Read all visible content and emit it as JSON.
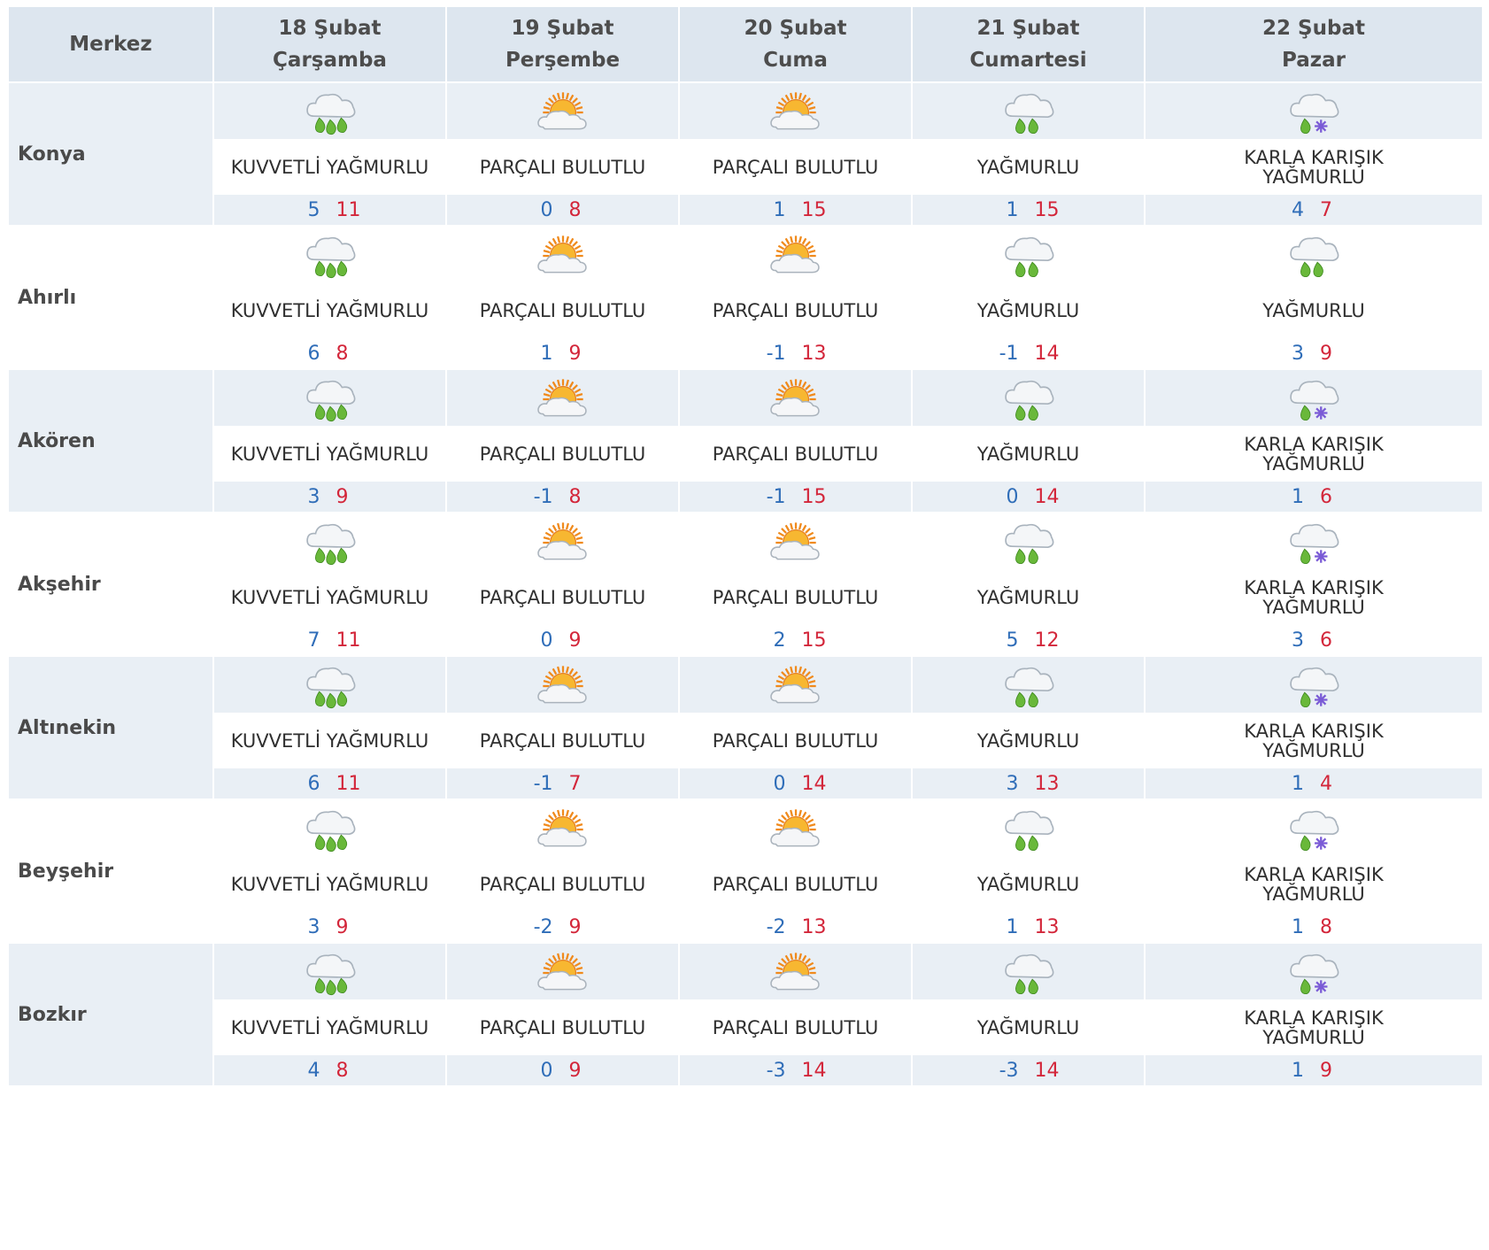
{
  "header": {
    "location_label": "Merkez",
    "days": [
      {
        "date": "18 Şubat",
        "weekday": "Çarşamba"
      },
      {
        "date": "19 Şubat",
        "weekday": "Perşembe"
      },
      {
        "date": "20 Şubat",
        "weekday": "Cuma"
      },
      {
        "date": "21 Şubat",
        "weekday": "Cumartesi"
      },
      {
        "date": "22 Şubat",
        "weekday": "Pazar"
      }
    ]
  },
  "icons": {
    "KUVVETLİ YAĞMURLU": "heavy-rain-icon",
    "PARÇALI BULUTLU": "partly-cloudy-icon",
    "YAĞMURLU": "rain-icon",
    "KARLA KARIŞIK YAĞMURLU": "sleet-icon"
  },
  "colors": {
    "min_temp": "#2f6db8",
    "max_temp": "#d3263a",
    "header_bg": "#dde6ef",
    "shade_bg": "#e9eff5"
  },
  "locations": [
    {
      "name": "Konya",
      "days": [
        {
          "condition": "KUVVETLİ YAĞMURLU",
          "min": "5",
          "max": "11"
        },
        {
          "condition": "PARÇALI BULUTLU",
          "min": "0",
          "max": "8"
        },
        {
          "condition": "PARÇALI BULUTLU",
          "min": "1",
          "max": "15"
        },
        {
          "condition": "YAĞMURLU",
          "min": "1",
          "max": "15"
        },
        {
          "condition": "KARLA KARIŞIK YAĞMURLU",
          "min": "4",
          "max": "7"
        }
      ]
    },
    {
      "name": "Ahırlı",
      "days": [
        {
          "condition": "KUVVETLİ YAĞMURLU",
          "min": "6",
          "max": "8"
        },
        {
          "condition": "PARÇALI BULUTLU",
          "min": "1",
          "max": "9"
        },
        {
          "condition": "PARÇALI BULUTLU",
          "min": "-1",
          "max": "13"
        },
        {
          "condition": "YAĞMURLU",
          "min": "-1",
          "max": "14"
        },
        {
          "condition": "YAĞMURLU",
          "min": "3",
          "max": "9"
        }
      ]
    },
    {
      "name": "Akören",
      "days": [
        {
          "condition": "KUVVETLİ YAĞMURLU",
          "min": "3",
          "max": "9"
        },
        {
          "condition": "PARÇALI BULUTLU",
          "min": "-1",
          "max": "8"
        },
        {
          "condition": "PARÇALI BULUTLU",
          "min": "-1",
          "max": "15"
        },
        {
          "condition": "YAĞMURLU",
          "min": "0",
          "max": "14"
        },
        {
          "condition": "KARLA KARIŞIK YAĞMURLU",
          "min": "1",
          "max": "6"
        }
      ]
    },
    {
      "name": "Akşehir",
      "days": [
        {
          "condition": "KUVVETLİ YAĞMURLU",
          "min": "7",
          "max": "11"
        },
        {
          "condition": "PARÇALI BULUTLU",
          "min": "0",
          "max": "9"
        },
        {
          "condition": "PARÇALI BULUTLU",
          "min": "2",
          "max": "15"
        },
        {
          "condition": "YAĞMURLU",
          "min": "5",
          "max": "12"
        },
        {
          "condition": "KARLA KARIŞIK YAĞMURLU",
          "min": "3",
          "max": "6"
        }
      ]
    },
    {
      "name": "Altınekin",
      "days": [
        {
          "condition": "KUVVETLİ YAĞMURLU",
          "min": "6",
          "max": "11"
        },
        {
          "condition": "PARÇALI BULUTLU",
          "min": "-1",
          "max": "7"
        },
        {
          "condition": "PARÇALI BULUTLU",
          "min": "0",
          "max": "14"
        },
        {
          "condition": "YAĞMURLU",
          "min": "3",
          "max": "13"
        },
        {
          "condition": "KARLA KARIŞIK YAĞMURLU",
          "min": "1",
          "max": "4"
        }
      ]
    },
    {
      "name": "Beyşehir",
      "days": [
        {
          "condition": "KUVVETLİ YAĞMURLU",
          "min": "3",
          "max": "9"
        },
        {
          "condition": "PARÇALI BULUTLU",
          "min": "-2",
          "max": "9"
        },
        {
          "condition": "PARÇALI BULUTLU",
          "min": "-2",
          "max": "13"
        },
        {
          "condition": "YAĞMURLU",
          "min": "1",
          "max": "13"
        },
        {
          "condition": "KARLA KARIŞIK YAĞMURLU",
          "min": "1",
          "max": "8"
        }
      ]
    },
    {
      "name": "Bozkır",
      "days": [
        {
          "condition": "KUVVETLİ YAĞMURLU",
          "min": "4",
          "max": "8"
        },
        {
          "condition": "PARÇALI BULUTLU",
          "min": "0",
          "max": "9"
        },
        {
          "condition": "PARÇALI BULUTLU",
          "min": "-3",
          "max": "14"
        },
        {
          "condition": "YAĞMURLU",
          "min": "-3",
          "max": "14"
        },
        {
          "condition": "KARLA KARIŞIK YAĞMURLU",
          "min": "1",
          "max": "9"
        }
      ]
    }
  ]
}
